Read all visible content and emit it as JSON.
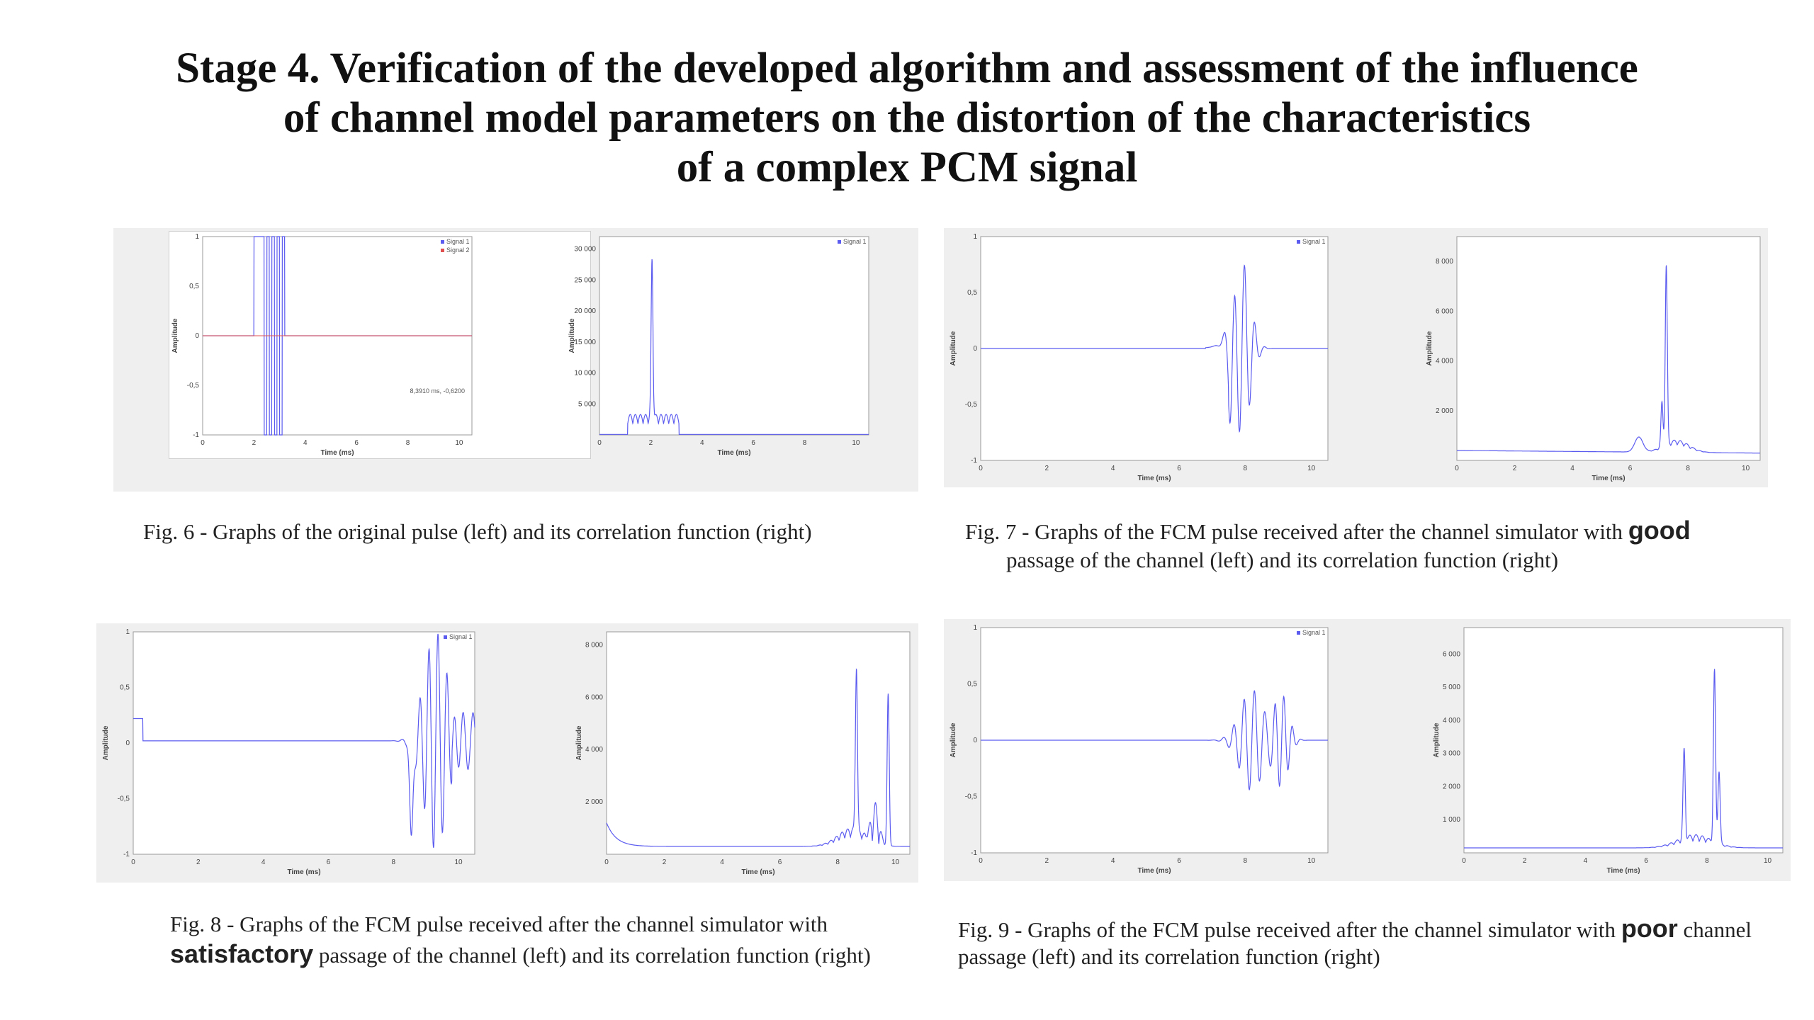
{
  "title": {
    "line1": "Stage 4. Verification of the developed algorithm and assessment of the influence",
    "line2": "of channel model parameters on the distortion of the characteristics",
    "line3": "of a complex PCM signal"
  },
  "colors": {
    "signal1": "#5b5bf0",
    "signal2": "#e05050",
    "panel_bg": "#efefef"
  },
  "figures": [
    {
      "id": "fig6",
      "caption_pre": "Fig. 6 - Graphs of the original pulse (left) and its correlation function (right)",
      "caption_bold": "",
      "caption_post": "",
      "left_chart": {
        "type": "line",
        "xlabel": "Time (ms)",
        "ylabel": "Amplitude",
        "xlim": [
          0,
          10.5
        ],
        "ylim": [
          -1,
          1
        ],
        "xticks": [
          "0",
          "2",
          "4",
          "6",
          "8",
          "10"
        ],
        "yticks": [
          "1",
          "0,5",
          "0",
          "-0,5",
          "-1"
        ],
        "legend": [
          "Signal 1",
          "Signal 2"
        ],
        "annotation": "8,3910 ms, -0,6200",
        "signal": "pulse_code"
      },
      "right_chart": {
        "type": "line",
        "xlabel": "Time (ms)",
        "ylabel": "Amplitude",
        "xlim": [
          0,
          10.5
        ],
        "ylim": [
          0,
          32000
        ],
        "xticks": [
          "0",
          "2",
          "4",
          "6",
          "8",
          "10"
        ],
        "yticks": [
          "30 000",
          "25 000",
          "20 000",
          "15 000",
          "10 000",
          "5 000"
        ],
        "legend": [
          "Signal 1"
        ],
        "signal": "corr_ideal"
      }
    },
    {
      "id": "fig7",
      "caption_pre": "Fig. 7 - Graphs of the FCM pulse received after the channel simulator with ",
      "caption_bold": "good",
      "caption_post": "passage of the channel (left) and its correlation function (right)",
      "left_chart": {
        "type": "line",
        "xlabel": "Time (ms)",
        "ylabel": "Amplitude",
        "xlim": [
          0,
          10.5
        ],
        "ylim": [
          -1,
          1
        ],
        "xticks": [
          "0",
          "2",
          "4",
          "6",
          "8",
          "10"
        ],
        "yticks": [
          "1",
          "0,5",
          "0",
          "-0,5",
          "-1"
        ],
        "legend": [
          "Signal 1"
        ],
        "signal": "rx_good"
      },
      "right_chart": {
        "type": "line",
        "xlabel": "Time (ms)",
        "ylabel": "Amplitude",
        "xlim": [
          0,
          10.5
        ],
        "ylim": [
          0,
          9000
        ],
        "xticks": [
          "0",
          "2",
          "4",
          "6",
          "8",
          "10"
        ],
        "yticks": [
          "8 000",
          "6 000",
          "4 000",
          "2 000"
        ],
        "signal": "corr_good"
      }
    },
    {
      "id": "fig8",
      "caption_pre": "Fig. 8 - Graphs of the FCM pulse received after the channel simulator with",
      "caption_bold": "satisfactory",
      "caption_post": " passage of the channel (left) and its correlation function (right)",
      "left_chart": {
        "type": "line",
        "xlabel": "Time (ms)",
        "ylabel": "Amplitude",
        "xlim": [
          0,
          10.5
        ],
        "ylim": [
          -1,
          1
        ],
        "xticks": [
          "0",
          "2",
          "4",
          "6",
          "8",
          "10"
        ],
        "yticks": [
          "1",
          "0,5",
          "0",
          "-0,5",
          "-1"
        ],
        "legend": [
          "Signal 1"
        ],
        "signal": "rx_satisfactory"
      },
      "right_chart": {
        "type": "line",
        "xlabel": "Time (ms)",
        "ylabel": "Amplitude",
        "xlim": [
          0,
          10.5
        ],
        "ylim": [
          0,
          8500
        ],
        "xticks": [
          "0",
          "2",
          "4",
          "6",
          "8",
          "10"
        ],
        "yticks": [
          "8 000",
          "6 000",
          "4 000",
          "2 000"
        ],
        "signal": "corr_satisfactory"
      }
    },
    {
      "id": "fig9",
      "caption_pre": "Fig. 9 - Graphs of the FCM pulse received after the channel simulator with ",
      "caption_bold": "poor",
      "caption_post": " channel",
      "caption_line2": "passage (left) and its correlation function (right)",
      "left_chart": {
        "type": "line",
        "xlabel": "Time (ms)",
        "ylabel": "Amplitude",
        "xlim": [
          0,
          10.5
        ],
        "ylim": [
          -1,
          1
        ],
        "xticks": [
          "0",
          "2",
          "4",
          "6",
          "8",
          "10"
        ],
        "yticks": [
          "1",
          "0,5",
          "0",
          "-0,5",
          "-1"
        ],
        "legend": [
          "Signal 1"
        ],
        "signal": "rx_poor"
      },
      "right_chart": {
        "type": "line",
        "xlabel": "Time (ms)",
        "ylabel": "Amplitude",
        "xlim": [
          0,
          10.5
        ],
        "ylim": [
          0,
          6800
        ],
        "xticks": [
          "0",
          "2",
          "4",
          "6",
          "8",
          "10"
        ],
        "yticks": [
          "6 000",
          "5 000",
          "4 000",
          "3 000",
          "2 000",
          "1 000"
        ],
        "signal": "corr_poor"
      }
    }
  ]
}
